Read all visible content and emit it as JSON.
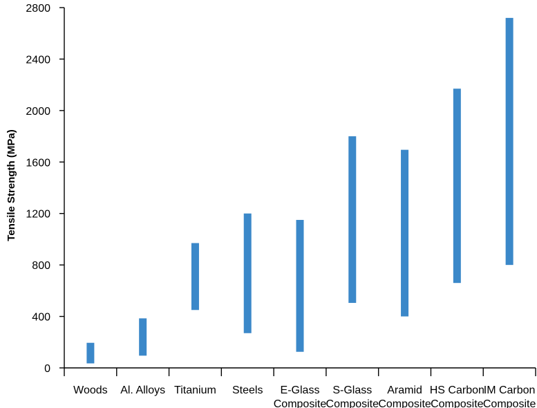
{
  "chart_data": {
    "type": "range-bar",
    "title": "",
    "xlabel": "",
    "ylabel": "Tensile Strength (MPa)",
    "ylim": [
      0,
      2800
    ],
    "yticks": [
      0,
      400,
      800,
      1200,
      1600,
      2000,
      2400,
      2800
    ],
    "grid": false,
    "legend": "none",
    "bar_color": "#3b88c9",
    "categories": [
      [
        "Woods"
      ],
      [
        "Al. Alloys"
      ],
      [
        "Titanium"
      ],
      [
        "Steels"
      ],
      [
        "E-Glass",
        "Composite"
      ],
      [
        "S-Glass",
        "Composite"
      ],
      [
        "Aramid",
        "Composite"
      ],
      [
        "HS Carbon",
        "Composite"
      ],
      [
        "IM Carbon",
        "Composite"
      ]
    ],
    "ranges": [
      [
        35,
        195
      ],
      [
        95,
        385
      ],
      [
        450,
        970
      ],
      [
        270,
        1200
      ],
      [
        125,
        1150
      ],
      [
        505,
        1800
      ],
      [
        400,
        1695
      ],
      [
        660,
        2170
      ],
      [
        800,
        2720
      ]
    ]
  }
}
